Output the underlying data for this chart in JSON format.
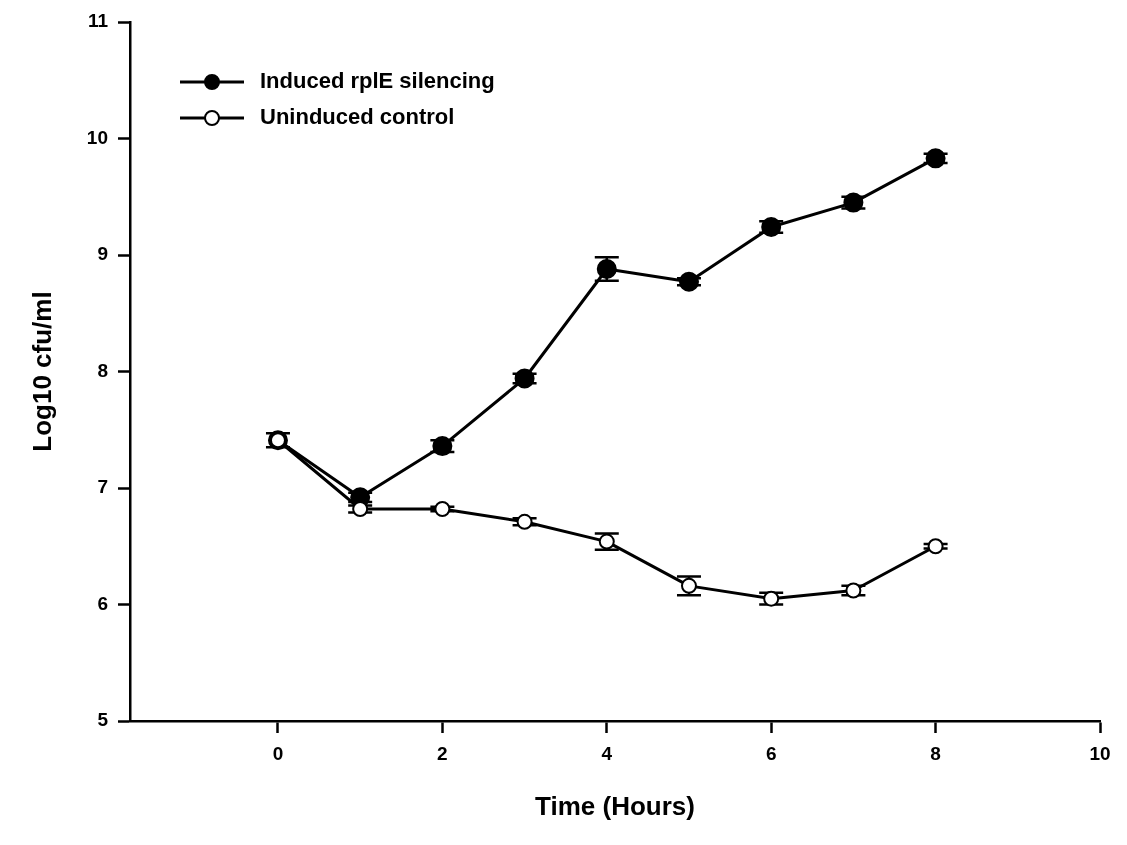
{
  "chart_data": {
    "type": "line",
    "xlabel": "Time (Hours)",
    "ylabel": "Log10 cfu/ml",
    "x": [
      0,
      1,
      2,
      3,
      4,
      5,
      6,
      7,
      8
    ],
    "series": [
      {
        "name": "Induced rplE silencing",
        "color": "#000000",
        "values": [
          7.41,
          6.92,
          7.36,
          7.94,
          8.88,
          8.77,
          9.24,
          9.45,
          9.83
        ],
        "errors": [
          null,
          0.04,
          0.05,
          0.04,
          0.1,
          0.03,
          0.05,
          0.05,
          0.04
        ]
      },
      {
        "name": "Uninduced control",
        "color": "#000000",
        "values": [
          7.41,
          6.82,
          6.82,
          6.71,
          6.54,
          6.16,
          6.05,
          6.12,
          6.5
        ],
        "errors": [
          0.06,
          0.03,
          0.02,
          0.03,
          0.07,
          0.08,
          0.05,
          0.04,
          0.02
        ]
      }
    ],
    "xlim": [
      -1.8,
      10
    ],
    "xticks": [
      0,
      2,
      4,
      6,
      8,
      10
    ],
    "ylim": [
      5,
      11
    ],
    "yticks": [
      5,
      6,
      7,
      8,
      9,
      10,
      11
    ],
    "grid": false,
    "legend": "top left",
    "marker": "circle",
    "line_style": "solid"
  }
}
